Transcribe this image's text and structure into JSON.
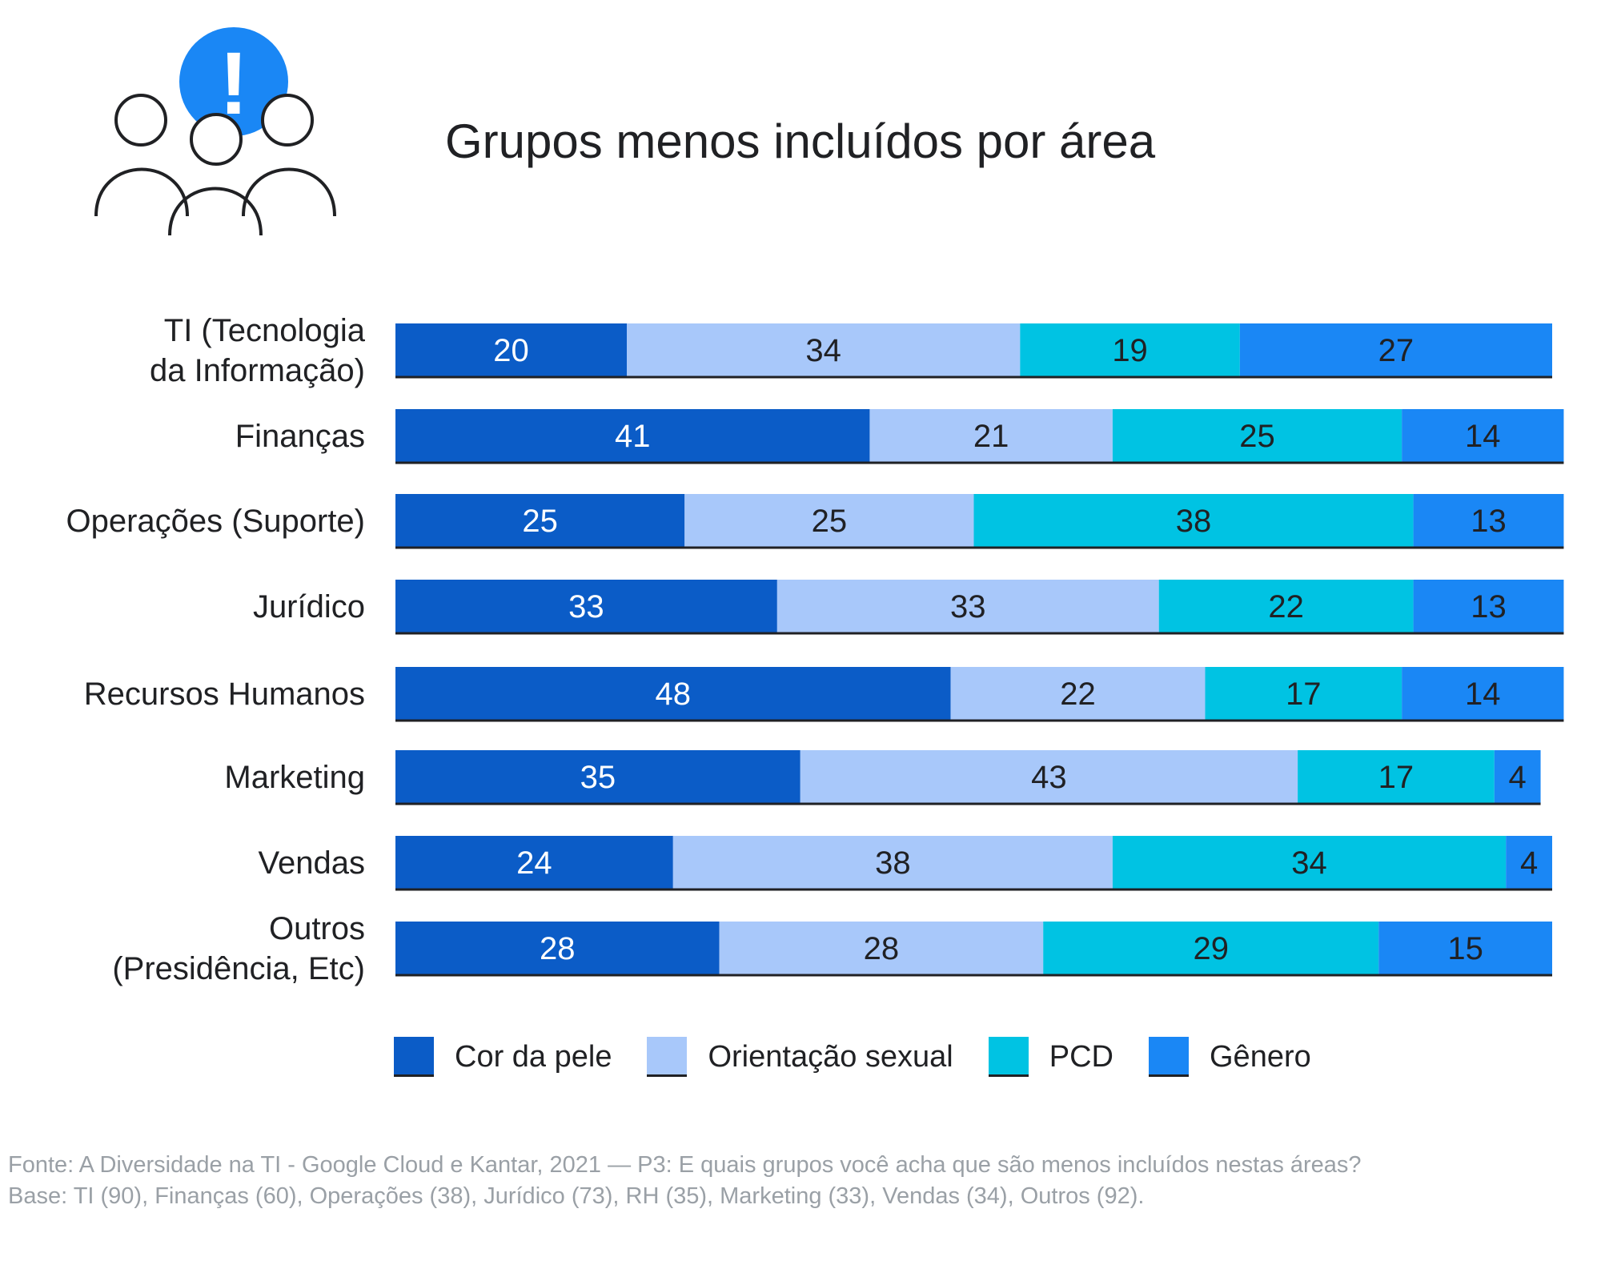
{
  "chart_data": {
    "type": "bar",
    "orientation": "horizontal",
    "stacked": true,
    "title": "Grupos menos incluídos por área",
    "categories": [
      [
        "TI (Tecnologia",
        "da Informação)"
      ],
      [
        "Finanças"
      ],
      [
        "Operações (Suporte)"
      ],
      [
        "Jurídico"
      ],
      [
        "Recursos Humanos"
      ],
      [
        "Marketing"
      ],
      [
        "Vendas"
      ],
      [
        "Outros",
        "(Presidência, Etc)"
      ]
    ],
    "series": [
      {
        "name": "Cor da pele",
        "color": "#0b5cc7",
        "text_color": "#ffffff",
        "values": [
          20,
          41,
          25,
          33,
          48,
          35,
          24,
          28
        ]
      },
      {
        "name": "Orientação sexual",
        "color": "#a8c8fa",
        "text_color": "#202124",
        "values": [
          34,
          21,
          25,
          33,
          22,
          43,
          38,
          28
        ]
      },
      {
        "name": "PCD",
        "color": "#00c3e3",
        "text_color": "#202124",
        "values": [
          19,
          25,
          38,
          22,
          17,
          17,
          34,
          29
        ]
      },
      {
        "name": "Gênero",
        "color": "#1a87f5",
        "text_color": "#202124",
        "values": [
          27,
          14,
          13,
          13,
          14,
          4,
          4,
          15
        ]
      }
    ],
    "legend": "bottom",
    "grid": false
  },
  "source": {
    "line1": "Fonte: A Diversidade na TI - Google Cloud e Kantar, 2021 — P3: E quais grupos você acha que são menos incluídos nestas áreas?",
    "line2": "Base: TI (90), Finanças (60), Operações (38), Jurídico (73), RH (35), Marketing (33), Vendas (34), Outros (92)."
  },
  "icon": {
    "name": "people-alert-icon",
    "alert_color": "#1a87f5",
    "alert_symbol": "!"
  }
}
